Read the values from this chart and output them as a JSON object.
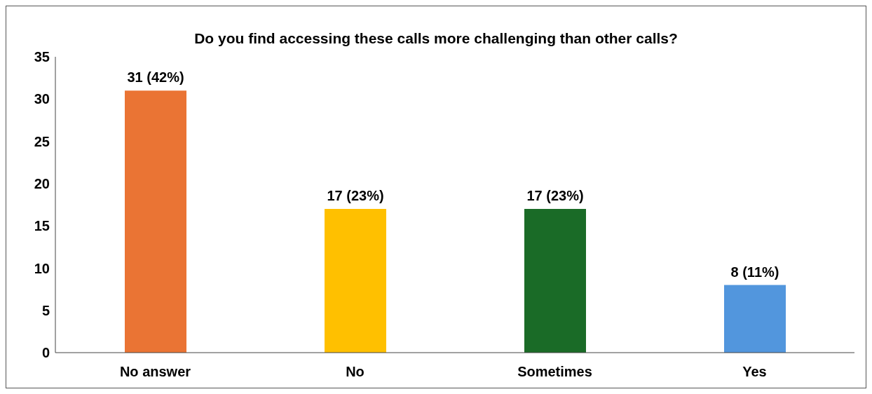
{
  "chart_data": {
    "type": "bar",
    "title": "Do you find accessing these calls more challenging than other calls?",
    "categories": [
      "No answer",
      "No",
      "Sometimes",
      "Yes"
    ],
    "values": [
      31,
      17,
      17,
      8
    ],
    "colors": [
      "#ea7434",
      "#ffc000",
      "#1a6b27",
      "#5296dd"
    ],
    "value_labels": [
      "31 (42%)",
      "17 (23%)",
      "17 (23%)",
      "8 (11%)"
    ],
    "ylim": [
      0,
      35
    ],
    "yticks": [
      0,
      5,
      10,
      15,
      20,
      25,
      30,
      35
    ],
    "grid": false
  }
}
